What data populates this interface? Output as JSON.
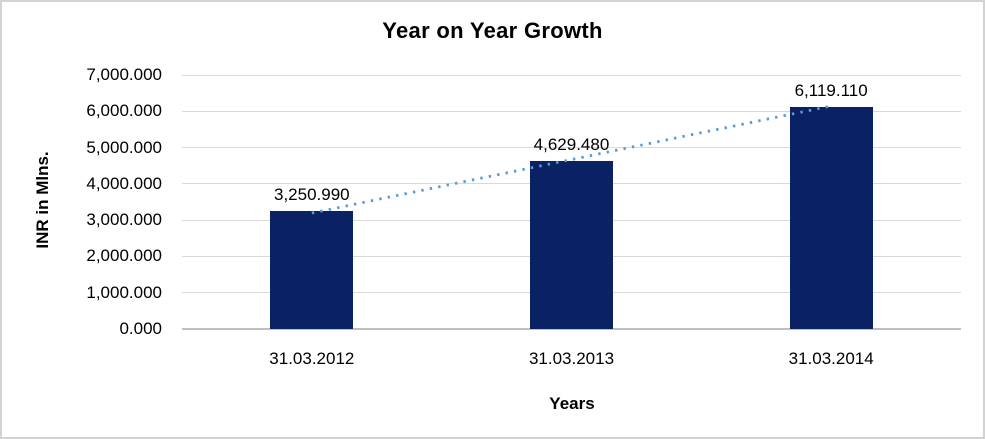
{
  "chart_data": {
    "type": "bar",
    "title": "Year on Year Growth",
    "categories": [
      "31.03.2012",
      "31.03.2013",
      "31.03.2014"
    ],
    "values": [
      3250.99,
      4629.48,
      6119.11
    ],
    "value_labels": [
      "3,250.990",
      "4,629.480",
      "6,119.110"
    ],
    "xlabel": "Years",
    "ylabel": "INR in Mlns.",
    "ylim": [
      0,
      7000
    ],
    "ytick_step": 1000,
    "ytick_labels": [
      "0.000",
      "1,000.000",
      "2,000.000",
      "3,000.000",
      "4,000.000",
      "5,000.000",
      "6,000.000",
      "7,000.000"
    ],
    "grid": true,
    "legend": "none",
    "trendline": {
      "type": "linear",
      "style": "dotted",
      "color": "#5b9bd5"
    },
    "colors": {
      "bar": "#0a2264",
      "gridline": "#d9d9d9",
      "axis_line": "#c0c0c0",
      "text": "#000000",
      "frame_border": "#d2d2d2",
      "background": "#ffffff"
    }
  }
}
